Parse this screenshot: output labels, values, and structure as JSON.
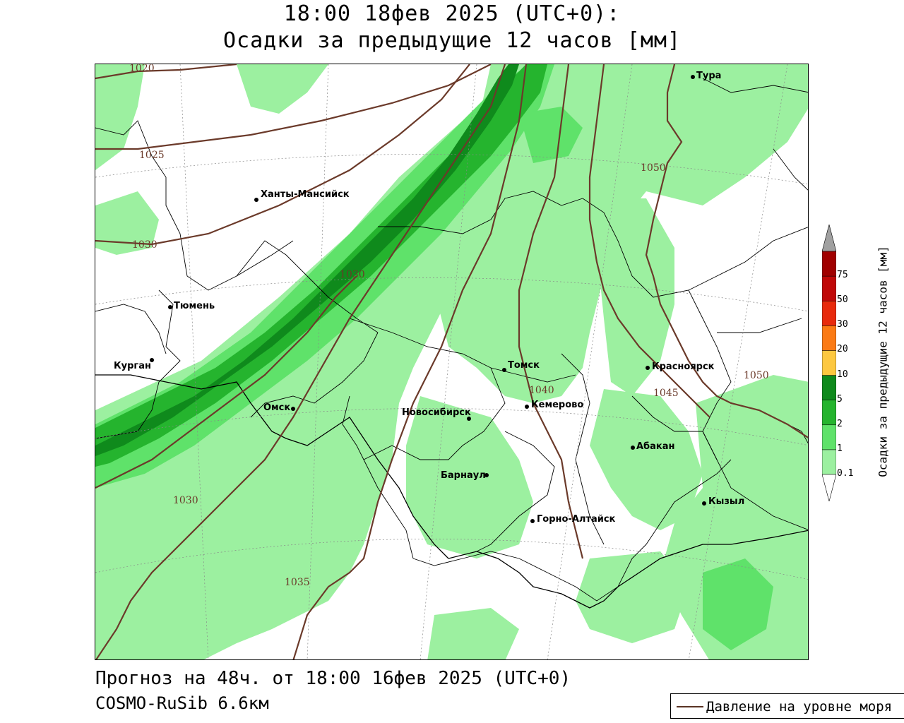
{
  "title": {
    "line1": "18:00 18фев 2025 (UTC+0):",
    "line2": "Осадки за предыдущие 12 часов [мм]"
  },
  "footer": {
    "forecast": "Прогноз на 48ч. от 18:00 16фев 2025 (UTC+0)",
    "model": "COSMO-RuSib 6.6км"
  },
  "legend": {
    "pressure_label": "Давление на уровне моря",
    "pressure_color": "#5a3424"
  },
  "colorbar": {
    "title": "Осадки за предыдущие 12 часов [мм]",
    "levels": [
      "0.1",
      "1",
      "2",
      "5",
      "10",
      "20",
      "30",
      "50",
      "75"
    ],
    "colors": [
      "#9cf0a0",
      "#5fe26a",
      "#25b42e",
      "#0f8a1c",
      "#fdc840",
      "#fb7a14",
      "#e82a0c",
      "#c00808",
      "#a00000"
    ],
    "over_color": "#a0a0a0",
    "under_color": "#ffffff"
  },
  "cities": [
    {
      "name": "Тура"
    },
    {
      "name": "Ханты-Мансийск"
    },
    {
      "name": "Тюмень"
    },
    {
      "name": "Курган"
    },
    {
      "name": "Омск"
    },
    {
      "name": "Новосибирск"
    },
    {
      "name": "Томск"
    },
    {
      "name": "Кемерово"
    },
    {
      "name": "Красноярск"
    },
    {
      "name": "Абакан"
    },
    {
      "name": "Барнаул"
    },
    {
      "name": "Горно-Алтайск"
    },
    {
      "name": "Кызыл"
    }
  ],
  "isobar_labels": [
    "1020",
    "1025",
    "1030",
    "1030",
    "1030",
    "1035",
    "1040",
    "1045",
    "1050",
    "1050"
  ]
}
